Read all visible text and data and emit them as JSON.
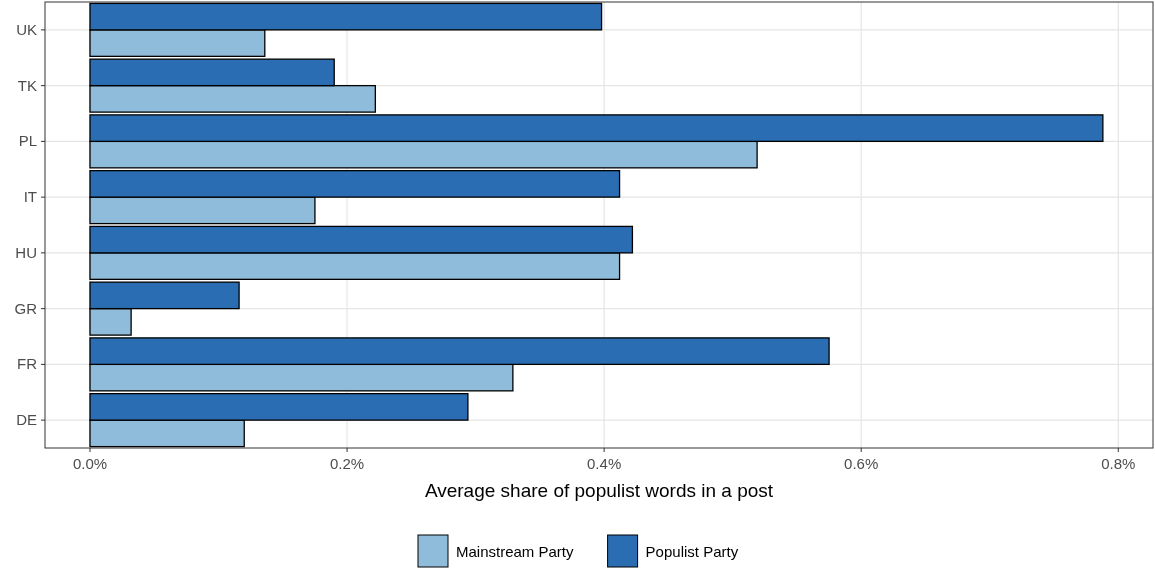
{
  "chart_data": {
    "type": "bar",
    "orientation": "horizontal",
    "xlabel": "Average share of populist words in a post",
    "categories": [
      "UK",
      "TK",
      "PL",
      "IT",
      "HU",
      "GR",
      "FR",
      "DE"
    ],
    "series": [
      {
        "name": "Mainstream Party",
        "color": "#8fbcdb",
        "values": [
          0.136,
          0.222,
          0.519,
          0.175,
          0.412,
          0.032,
          0.329,
          0.12
        ]
      },
      {
        "name": "Populist Party",
        "color": "#2a6db2",
        "values": [
          0.398,
          0.19,
          0.788,
          0.412,
          0.422,
          0.116,
          0.575,
          0.294
        ]
      }
    ],
    "xlim": [
      -0.035,
      0.827
    ],
    "xticks": [
      {
        "value": 0,
        "label": "0.0%"
      },
      {
        "value": 0.2,
        "label": "0.2%"
      },
      {
        "value": 0.4,
        "label": "0.4%"
      },
      {
        "value": 0.6,
        "label": "0.6%"
      },
      {
        "value": 0.8,
        "label": "0.8%"
      }
    ],
    "grid": true,
    "legend": "bottom"
  }
}
